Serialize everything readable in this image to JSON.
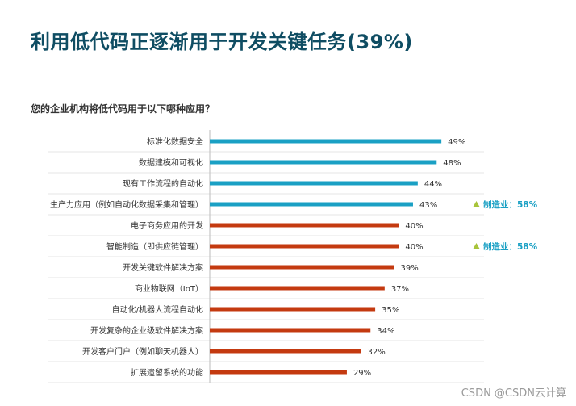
{
  "title": "利用低代码正逐渐用于开发关键任务(39%)",
  "watermark": "CSDN @CSDN云计算",
  "colors": {
    "teal": "#1aa0c4",
    "red": "#c43a10",
    "title": "#0f4d63",
    "arrow": "#a8c43a"
  },
  "chart_data": {
    "type": "bar",
    "orientation": "horizontal",
    "title": "您的企业机构将低代码用于以下哪种应用？",
    "categories": [
      "标准化数据安全",
      "数据建模和可视化",
      "现有工作流程的自动化",
      "生产力应用（例如自动化数据采集和管理）",
      "电子商务应用的开发",
      "智能制造（即供应链管理）",
      "开发关键软件解决方案",
      "商业物联网（IoT）",
      "自动化/机器人流程自动化",
      "开发复杂的企业级软件解决方案",
      "开发客户门户（例如聊天机器人）",
      "扩展遗留系统的功能"
    ],
    "values": [
      49,
      48,
      44,
      43,
      40,
      40,
      39,
      37,
      35,
      34,
      32,
      29
    ],
    "value_labels": [
      "49%",
      "48%",
      "44%",
      "43%",
      "40%",
      "40%",
      "39%",
      "37%",
      "35%",
      "34%",
      "32%",
      "29%"
    ],
    "bar_colors": [
      "teal",
      "teal",
      "teal",
      "teal",
      "red",
      "red",
      "red",
      "red",
      "red",
      "red",
      "red",
      "red"
    ],
    "xlim": [
      0,
      70
    ],
    "annotations": [
      {
        "category_index": 3,
        "text": "制造业：58%"
      },
      {
        "category_index": 5,
        "text": "制造业：58%"
      }
    ]
  }
}
